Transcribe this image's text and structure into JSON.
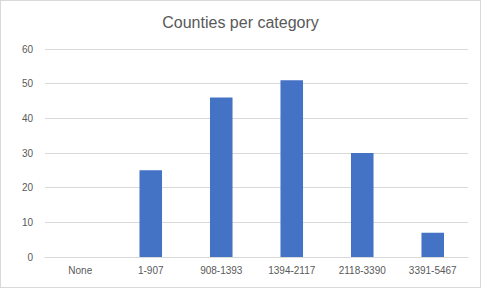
{
  "chart_data": {
    "type": "bar",
    "title": "Counties per category",
    "categories": [
      "None",
      "1-907",
      "908-1393",
      "1394-2117",
      "2118-3390",
      "3391-5467"
    ],
    "values": [
      0,
      25,
      46,
      51,
      30,
      7
    ],
    "color": "#4472c4",
    "ylim": [
      0,
      60
    ],
    "yticks": [
      0,
      10,
      20,
      30,
      40,
      50,
      60
    ],
    "grid": true
  }
}
